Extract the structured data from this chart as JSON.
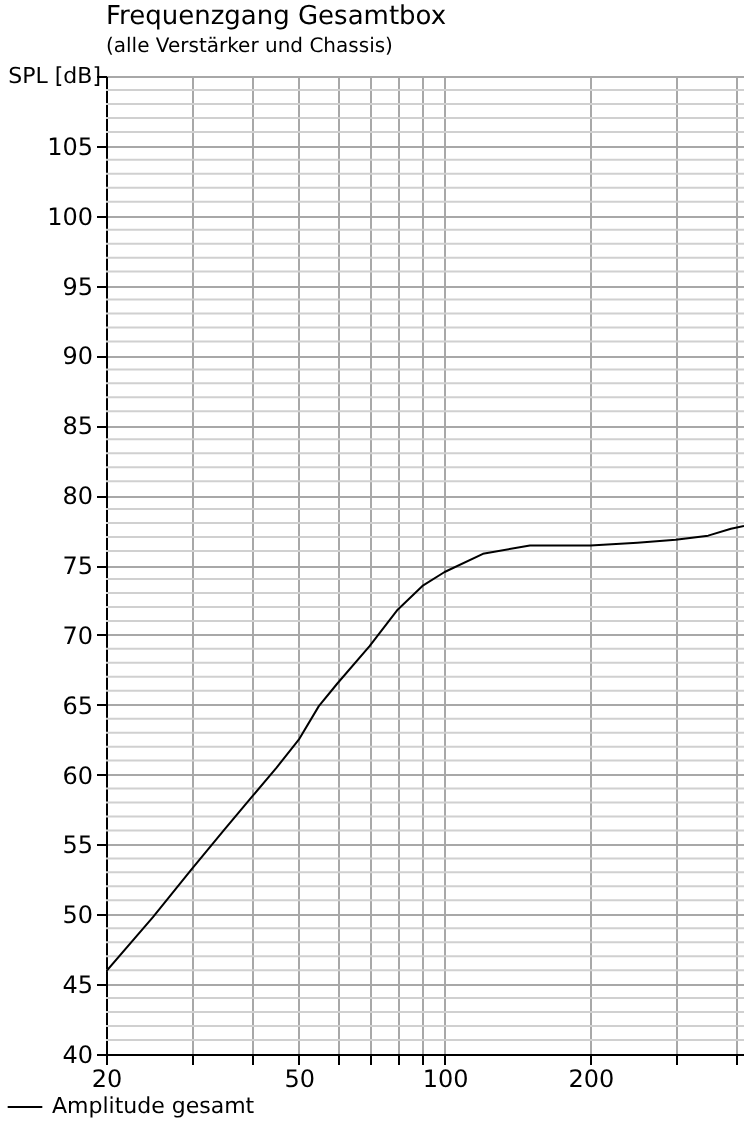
{
  "chart_data": {
    "type": "line",
    "title": "Frequenzgang Gesamtbox",
    "subtitle": "(alle Verstärker und Chassis)",
    "ylabel": "SPL [dB]",
    "log": "x",
    "grid": true,
    "legend": "bottom left",
    "marker": "none",
    "line_style": "solid",
    "xlim": [
      20,
      415
    ],
    "ylim": [
      40,
      110
    ],
    "xticks": [
      20,
      {
        "value": 30,
        "label": null
      },
      {
        "value": 40,
        "label": null
      },
      50,
      {
        "value": 60,
        "label": null
      },
      {
        "value": 70,
        "label": null
      },
      {
        "value": 80,
        "label": null
      },
      {
        "value": 90,
        "label": null
      },
      100,
      200,
      {
        "value": 300,
        "label": null
      },
      {
        "value": 400,
        "label": null
      }
    ],
    "yticks": [
      40,
      45,
      50,
      55,
      60,
      65,
      70,
      75,
      80,
      85,
      90,
      95,
      100,
      105,
      {
        "value": 110,
        "label": null
      }
    ],
    "series": [
      {
        "name": "Amplitude gesamt",
        "color": "#000000",
        "x": [
          20,
          25,
          30,
          35,
          40,
          45,
          50,
          55,
          60,
          70,
          80,
          90,
          100,
          120,
          150,
          200,
          250,
          300,
          350,
          390,
          415
        ],
        "values": [
          45.9,
          49.8,
          53.2,
          56.0,
          58.4,
          60.5,
          62.5,
          64.9,
          66.5,
          69.2,
          71.8,
          73.5,
          74.5,
          75.8,
          76.4,
          76.4,
          76.6,
          76.8,
          77.1,
          77.6,
          77.8
        ]
      }
    ]
  }
}
